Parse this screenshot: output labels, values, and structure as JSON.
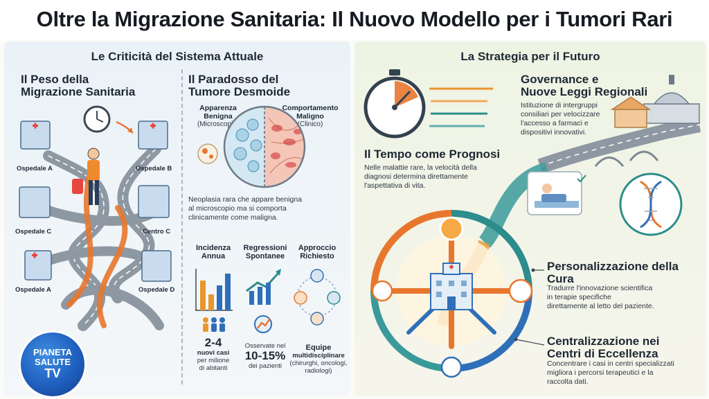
{
  "title": "Oltre la Migrazione Sanitaria: Il Nuovo Modello per i Tumori Rari",
  "left": {
    "section_title": "Le Criticità del Sistema Attuale",
    "migration": {
      "heading_line1": "Il Peso della",
      "heading_line2": "Migrazione Sanitaria",
      "hospitals": [
        "Ospedale A",
        "Ospedale B",
        "Ospedale C",
        "Centro C",
        "Ospedale A",
        "Ospedale D"
      ]
    },
    "paradox": {
      "heading_line1": "Il Paradosso del",
      "heading_line2": "Tumore Desmoide",
      "benign_line1": "Apparenza",
      "benign_line2": "Benigna",
      "benign_sub": "(Microscopio)",
      "malign_line1": "Comportamento",
      "malign_line2": "Maligno",
      "malign_sub": "(Clinico)",
      "description": [
        "Neoplasia rara che appare benigna",
        "al microscopio ma si comporta",
        "clinicamente come maligna."
      ]
    },
    "stats": [
      {
        "title_line1": "Incidenza",
        "title_line2": "Annua",
        "value": "2-4",
        "desc": [
          "nuovi casi",
          "per milione",
          "di abitanti"
        ]
      },
      {
        "title_line1": "Regressioni",
        "title_line2": "Spontanee",
        "pre": "Osservate nel",
        "value": "10-15%",
        "desc": [
          "dei pazienti"
        ]
      },
      {
        "title_line1": "Approccio",
        "title_line2": "Richiesto",
        "value": "Equipe",
        "desc": [
          "multidisciplinare",
          "(chirurghi, oncologi,",
          "radiologi)"
        ]
      }
    ],
    "logo": {
      "line1": "PIANETA",
      "line2": "SALUTE",
      "line3": "TV"
    }
  },
  "right": {
    "section_title": "La Strategia per il Futuro",
    "governance": {
      "heading_line1": "Governance e",
      "heading_line2": "Nuove Leggi Regionali",
      "body": [
        "Istituzione di intergruppi",
        "consiliari per velocizzare",
        "l'accesso a farmaci e",
        "dispositivi innovativi."
      ]
    },
    "time": {
      "heading": "Il Tempo come Prognosi",
      "body": [
        "Nelle malattie rare, la velocità della",
        "diagnosi determina direttamente",
        "l'aspettativa di vita."
      ]
    },
    "personal": {
      "heading_line1": "Personalizzazione della",
      "heading_line2": "Cura",
      "body": [
        "Tradurre l'innovazione scientifica",
        "in terapie specifiche",
        "direttamente al letto del paziente."
      ]
    },
    "central": {
      "heading_line1": "Centralizzazione nei",
      "heading_line2": "Centri di Eccellenza",
      "body": [
        "Concentrare i casi in centri specializzati",
        "migliora i percorsi terapeutici e la",
        "raccolta dati."
      ]
    }
  },
  "colors": {
    "road": "#8e98a3",
    "orange": "#e8772e",
    "blue": "#2f6fb8",
    "teal": "#2d8c8c"
  }
}
